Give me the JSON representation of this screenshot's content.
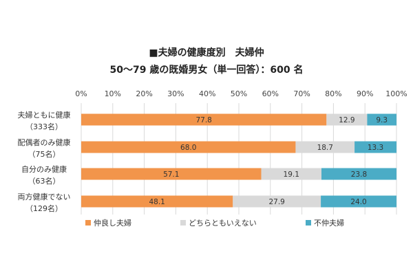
{
  "chart_data": {
    "type": "bar",
    "orientation": "horizontal",
    "stacked": true,
    "title": "■夫婦の健康度別　夫婦仲",
    "subtitle": "50～79 歳の既婚男女（単一回答）：600 名",
    "categories": [
      {
        "label": "夫婦ともに健康",
        "n": "（333名）"
      },
      {
        "label": "配偶者のみ健康",
        "n": "（75名）"
      },
      {
        "label": "自分のみ健康",
        "n": "（63名）"
      },
      {
        "label": "両方健康でない",
        "n": "（129名）"
      }
    ],
    "series": [
      {
        "name": "仲良し夫婦",
        "color": "#F2954B",
        "values": [
          77.8,
          68.0,
          57.1,
          48.1
        ],
        "labels": [
          "77.8",
          "68.0",
          "57.1",
          "48.1"
        ]
      },
      {
        "name": "どちらともいえない",
        "color": "#D9D9D9",
        "values": [
          12.9,
          18.7,
          19.1,
          27.9
        ],
        "labels": [
          "12.9",
          "18.7",
          "19.1",
          "27.9"
        ]
      },
      {
        "name": "不仲夫婦",
        "color": "#4BACC6",
        "values": [
          9.3,
          13.3,
          23.8,
          24.0
        ],
        "labels": [
          "9.3",
          "13.3",
          "23.8",
          "24.0"
        ]
      }
    ],
    "xlim": [
      0,
      100
    ],
    "xticks": [
      0,
      10,
      20,
      30,
      40,
      50,
      60,
      70,
      80,
      90,
      100
    ],
    "xtick_suffix": "%",
    "grid": true,
    "legend": "bottom"
  }
}
